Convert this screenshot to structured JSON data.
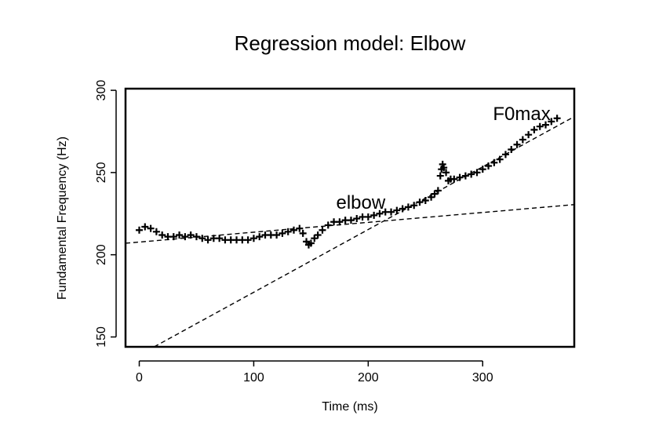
{
  "chart_data": {
    "type": "scatter",
    "title": "Regression model:  Elbow",
    "xlabel": "Time (ms)",
    "ylabel": "Fundamental Frequency (Hz)",
    "xlim": [
      -12,
      380
    ],
    "ylim": [
      144,
      301
    ],
    "x_ticks": [
      0,
      100,
      200,
      300
    ],
    "y_ticks": [
      150,
      200,
      250,
      300
    ],
    "grid": false,
    "legend": "none",
    "series": [
      {
        "marker": "plus",
        "points": [
          [
            0,
            215
          ],
          [
            5,
            217
          ],
          [
            10,
            216
          ],
          [
            15,
            214
          ],
          [
            20,
            212
          ],
          [
            25,
            211
          ],
          [
            30,
            211
          ],
          [
            35,
            212
          ],
          [
            40,
            211
          ],
          [
            45,
            212
          ],
          [
            50,
            211
          ],
          [
            55,
            210
          ],
          [
            60,
            209
          ],
          [
            65,
            210
          ],
          [
            70,
            210
          ],
          [
            75,
            209
          ],
          [
            80,
            209
          ],
          [
            85,
            209
          ],
          [
            90,
            209
          ],
          [
            95,
            209
          ],
          [
            100,
            210
          ],
          [
            105,
            211
          ],
          [
            110,
            212
          ],
          [
            115,
            212
          ],
          [
            120,
            212
          ],
          [
            125,
            213
          ],
          [
            130,
            214
          ],
          [
            135,
            215
          ],
          [
            140,
            216
          ],
          [
            143,
            213
          ],
          [
            146,
            208
          ],
          [
            148,
            206
          ],
          [
            150,
            207
          ],
          [
            153,
            210
          ],
          [
            156,
            212
          ],
          [
            160,
            215
          ],
          [
            165,
            218
          ],
          [
            170,
            220
          ],
          [
            175,
            220
          ],
          [
            180,
            221
          ],
          [
            185,
            221
          ],
          [
            190,
            222
          ],
          [
            195,
            223
          ],
          [
            200,
            223
          ],
          [
            205,
            224
          ],
          [
            210,
            225
          ],
          [
            215,
            226
          ],
          [
            220,
            226
          ],
          [
            225,
            227
          ],
          [
            230,
            228
          ],
          [
            235,
            229
          ],
          [
            240,
            230
          ],
          [
            245,
            232
          ],
          [
            250,
            233
          ],
          [
            255,
            235
          ],
          [
            258,
            237
          ],
          [
            261,
            239
          ],
          [
            263,
            248
          ],
          [
            264,
            252
          ],
          [
            265,
            255
          ],
          [
            266,
            253
          ],
          [
            268,
            250
          ],
          [
            270,
            245
          ],
          [
            272,
            246
          ],
          [
            275,
            246
          ],
          [
            280,
            247
          ],
          [
            285,
            248
          ],
          [
            290,
            249
          ],
          [
            295,
            250
          ],
          [
            300,
            252
          ],
          [
            305,
            254
          ],
          [
            310,
            256
          ],
          [
            315,
            258
          ],
          [
            320,
            261
          ],
          [
            325,
            264
          ],
          [
            330,
            267
          ],
          [
            335,
            270
          ],
          [
            340,
            273
          ],
          [
            345,
            276
          ],
          [
            350,
            278
          ],
          [
            355,
            279
          ],
          [
            360,
            281
          ],
          [
            365,
            283
          ]
        ]
      }
    ],
    "fit_lines": [
      {
        "style": "dashed",
        "from": [
          -12,
          207
        ],
        "to": [
          380,
          230.5
        ]
      },
      {
        "style": "dashed",
        "from": [
          13,
          144
        ],
        "to": [
          380,
          284
        ]
      }
    ],
    "annotations": [
      {
        "text": "elbow",
        "x": 172,
        "y": 228
      },
      {
        "text": "F0max",
        "x": 309,
        "y": 282
      }
    ]
  }
}
